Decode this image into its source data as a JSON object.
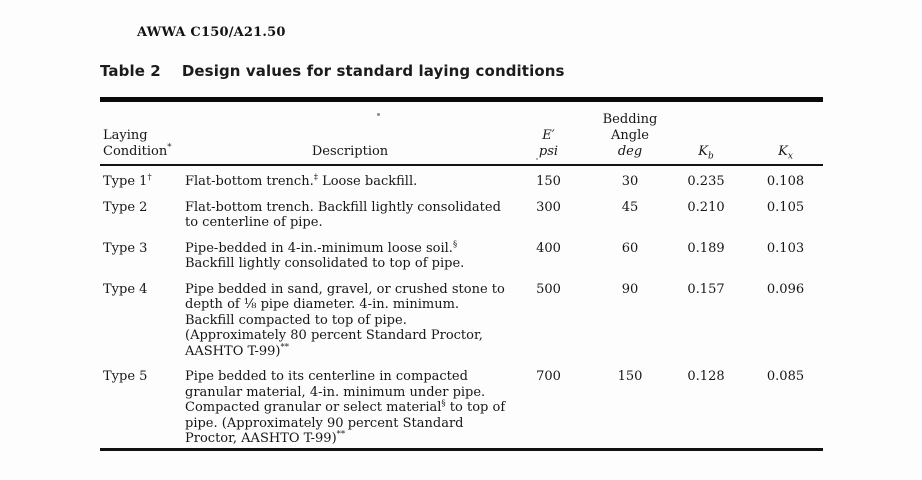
{
  "page": {
    "doc_ref": "AWWA C150/A21.50",
    "table_label": "Table 2",
    "table_title": "Design values for standard laying conditions"
  },
  "table": {
    "columns": [
      {
        "id": "condition",
        "label": "Laying\nCondition^{*}"
      },
      {
        "id": "description",
        "label": "Description"
      },
      {
        "id": "e_psi",
        "label": "~{E′}\n~{psi}"
      },
      {
        "id": "bedding_angle",
        "label": "Bedding\nAngle\n~{deg}"
      },
      {
        "id": "kb",
        "label": "~{K}_{~{b}}"
      },
      {
        "id": "kx",
        "label": "~{K}_{~{x}}"
      }
    ],
    "rows": [
      {
        "condition": "Type 1^{†}",
        "description": "Flat-bottom trench.^{‡} Loose backfill.",
        "e_psi": "150",
        "bedding_angle": "30",
        "kb": "0.235",
        "kx": "0.108"
      },
      {
        "condition": "Type 2",
        "description": "Flat-bottom trench. Backfill lightly consolidated\nto centerline of pipe.",
        "e_psi": "300",
        "bedding_angle": "45",
        "kb": "0.210",
        "kx": "0.105"
      },
      {
        "condition": "Type 3",
        "description": "Pipe-bedded in 4-in.-minimum loose soil.^{§}\nBackfill lightly consolidated to top of pipe.",
        "e_psi": "400",
        "bedding_angle": "60",
        "kb": "0.189",
        "kx": "0.103"
      },
      {
        "condition": "Type 4",
        "description": "Pipe bedded in sand, gravel, or crushed stone to\ndepth of ⅛ pipe diameter. 4-in. minimum.\nBackfill compacted to top of pipe.\n(Approximately 80 percent Standard Proctor,\nAASHTO T-99)^{**}",
        "e_psi": "500",
        "bedding_angle": "90",
        "kb": "0.157",
        "kx": "0.096"
      },
      {
        "condition": "Type 5",
        "description": "Pipe bedded to its centerline in compacted\ngranular material, 4-in. minimum under pipe.\nCompacted granular or select material^{§} to top of\npipe. (Approximately 90 percent Standard\nProctor, AASHTO T-99)^{**}",
        "e_psi": "700",
        "bedding_angle": "150",
        "kb": "0.128",
        "kx": "0.085"
      }
    ]
  }
}
